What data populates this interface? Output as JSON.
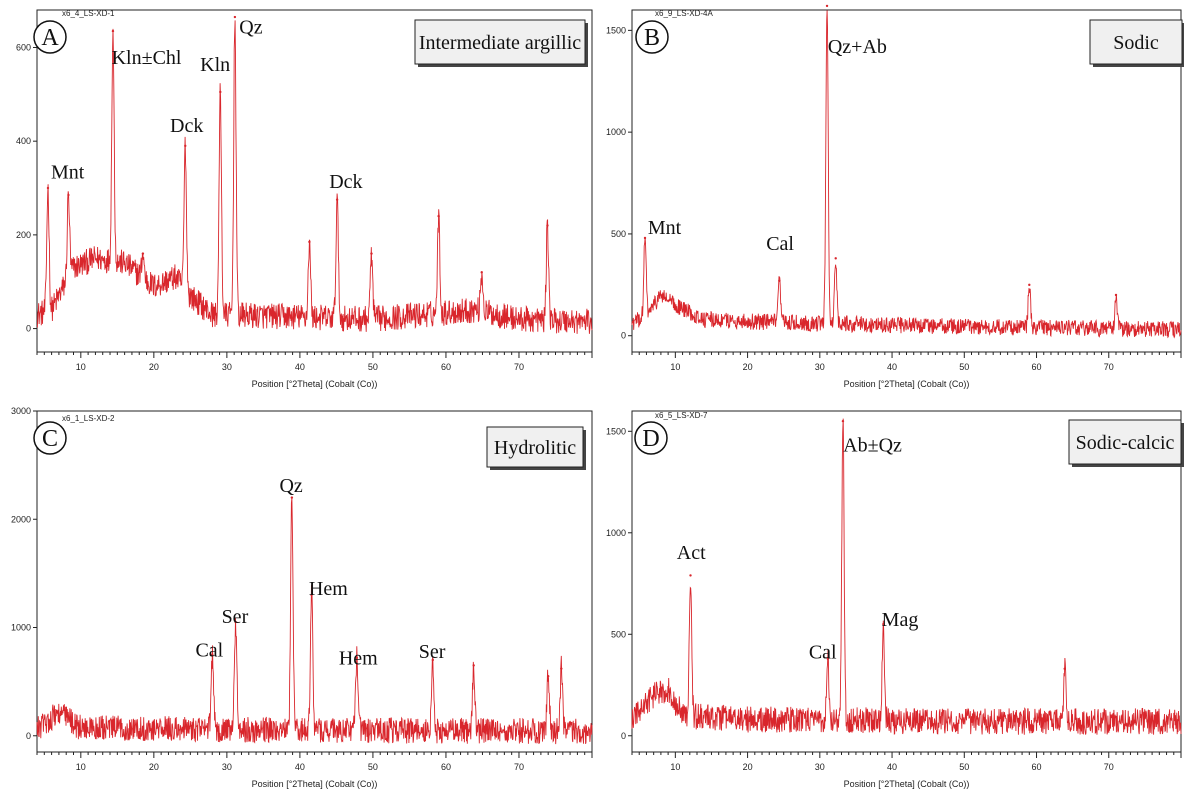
{
  "chart_data": [
    {
      "type": "line",
      "panel_letter": "A",
      "sample_id": "x6_4_LS-XD-1",
      "zone_label": "Intermediate argillic",
      "xlabel": "Position [°2Theta] (Cobalt (Co))",
      "xlim": [
        4,
        80
      ],
      "ylim": [
        -50,
        680
      ],
      "x_ticks": [
        10,
        20,
        30,
        40,
        50,
        60,
        70
      ],
      "y_ticks": [
        0,
        200,
        400,
        600
      ],
      "line_color": "#d9262c",
      "noise_amplitude": 28,
      "baseline": [
        [
          4,
          30
        ],
        [
          6,
          40
        ],
        [
          9,
          130
        ],
        [
          12,
          150
        ],
        [
          16,
          140
        ],
        [
          20,
          90
        ],
        [
          23,
          110
        ],
        [
          25,
          70
        ],
        [
          28,
          30
        ],
        [
          40,
          25
        ],
        [
          50,
          20
        ],
        [
          64,
          40
        ],
        [
          70,
          20
        ],
        [
          80,
          15
        ]
      ],
      "peaks": [
        {
          "x": 5.5,
          "y": 300
        },
        {
          "x": 8.3,
          "y": 285
        },
        {
          "x": 14.4,
          "y": 635
        },
        {
          "x": 18.5,
          "y": 160
        },
        {
          "x": 24.3,
          "y": 390
        },
        {
          "x": 29.1,
          "y": 505
        },
        {
          "x": 31.1,
          "y": 665
        },
        {
          "x": 41.3,
          "y": 185
        },
        {
          "x": 45.1,
          "y": 275
        },
        {
          "x": 49.8,
          "y": 160
        },
        {
          "x": 59.0,
          "y": 240
        },
        {
          "x": 64.9,
          "y": 120
        },
        {
          "x": 73.9,
          "y": 220
        }
      ],
      "annotations": [
        {
          "text": "Mnt",
          "x": 8.2,
          "y": 320
        },
        {
          "text": "Kln±Chl",
          "x": 19,
          "y": 565
        },
        {
          "text": "Dck",
          "x": 24.5,
          "y": 420
        },
        {
          "text": "Kln",
          "x": 28.4,
          "y": 550
        },
        {
          "text": "Qz",
          "x": 33.3,
          "y": 630
        },
        {
          "text": "Dck",
          "x": 46.3,
          "y": 300
        }
      ]
    },
    {
      "type": "line",
      "panel_letter": "B",
      "sample_id": "x6_9_LS-XD-4A",
      "zone_label": "Sodic",
      "xlabel": "Position [°2Theta] (Cobalt (Co))",
      "xlim": [
        4,
        80
      ],
      "ylim": [
        -80,
        1600
      ],
      "x_ticks": [
        10,
        20,
        30,
        40,
        50,
        60,
        70
      ],
      "y_ticks": [
        0,
        500,
        1000,
        1500
      ],
      "line_color": "#d9262c",
      "noise_amplitude": 40,
      "baseline": [
        [
          4,
          60
        ],
        [
          6,
          100
        ],
        [
          8,
          200
        ],
        [
          10,
          150
        ],
        [
          14,
          80
        ],
        [
          20,
          70
        ],
        [
          30,
          60
        ],
        [
          50,
          45
        ],
        [
          80,
          30
        ]
      ],
      "peaks": [
        {
          "x": 5.8,
          "y": 480
        },
        {
          "x": 24.4,
          "y": 270
        },
        {
          "x": 31.0,
          "y": 1620
        },
        {
          "x": 32.2,
          "y": 380
        },
        {
          "x": 59.0,
          "y": 250
        },
        {
          "x": 71.0,
          "y": 200
        }
      ],
      "annotations": [
        {
          "text": "Mnt",
          "x": 8.5,
          "y": 500
        },
        {
          "text": "Cal",
          "x": 24.5,
          "y": 420
        },
        {
          "text": "Qz+Ab",
          "x": 35.2,
          "y": 1390
        }
      ]
    },
    {
      "type": "line",
      "panel_letter": "C",
      "sample_id": "x6_1_LS-XD-2",
      "zone_label": "Hydrolitic",
      "xlabel": "Position [°2Theta] (Cobalt (Co))",
      "xlim": [
        4,
        80
      ],
      "ylim": [
        -150,
        3000
      ],
      "x_ticks": [
        10,
        20,
        30,
        40,
        50,
        60,
        70
      ],
      "y_ticks": [
        0,
        1000,
        2000,
        3000
      ],
      "line_color": "#d9262c",
      "noise_amplitude": 120,
      "baseline": [
        [
          4,
          60
        ],
        [
          7,
          220
        ],
        [
          10,
          70
        ],
        [
          25,
          60
        ],
        [
          50,
          50
        ],
        [
          80,
          40
        ]
      ],
      "peaks": [
        {
          "x": 28.0,
          "y": 750
        },
        {
          "x": 31.2,
          "y": 1050
        },
        {
          "x": 38.9,
          "y": 2200
        },
        {
          "x": 41.6,
          "y": 1300
        },
        {
          "x": 47.8,
          "y": 720
        },
        {
          "x": 58.2,
          "y": 700
        },
        {
          "x": 63.8,
          "y": 650
        },
        {
          "x": 74.0,
          "y": 550
        },
        {
          "x": 75.8,
          "y": 620
        }
      ],
      "annotations": [
        {
          "text": "Cal",
          "x": 27.6,
          "y": 730
        },
        {
          "text": "Ser",
          "x": 31.1,
          "y": 1040
        },
        {
          "text": "Qz",
          "x": 38.8,
          "y": 2250
        },
        {
          "text": "Hem",
          "x": 43.9,
          "y": 1300
        },
        {
          "text": "Hem",
          "x": 48.0,
          "y": 660
        },
        {
          "text": "Ser",
          "x": 58.1,
          "y": 720
        }
      ]
    },
    {
      "type": "line",
      "panel_letter": "D",
      "sample_id": "x6_5_LS-XD-7",
      "zone_label": "Sodic-calcic",
      "xlabel": "Position [°2Theta] (Cobalt (Co))",
      "xlim": [
        4,
        80
      ],
      "ylim": [
        -80,
        1600
      ],
      "x_ticks": [
        10,
        20,
        30,
        40,
        50,
        60,
        70
      ],
      "y_ticks": [
        0,
        500,
        1000,
        1500
      ],
      "line_color": "#d9262c",
      "noise_amplitude": 65,
      "baseline": [
        [
          4,
          80
        ],
        [
          7,
          200
        ],
        [
          9,
          230
        ],
        [
          11,
          100
        ],
        [
          20,
          80
        ],
        [
          50,
          70
        ],
        [
          80,
          70
        ]
      ],
      "peaks": [
        {
          "x": 12.1,
          "y": 790
        },
        {
          "x": 31.1,
          "y": 380
        },
        {
          "x": 33.2,
          "y": 1550
        },
        {
          "x": 38.8,
          "y": 550
        },
        {
          "x": 63.9,
          "y": 330
        }
      ],
      "annotations": [
        {
          "text": "Act",
          "x": 12.2,
          "y": 870
        },
        {
          "text": "Cal",
          "x": 30.4,
          "y": 380
        },
        {
          "text": "Ab±Qz",
          "x": 37.3,
          "y": 1400
        },
        {
          "text": "Mag",
          "x": 41.1,
          "y": 540
        }
      ]
    }
  ]
}
